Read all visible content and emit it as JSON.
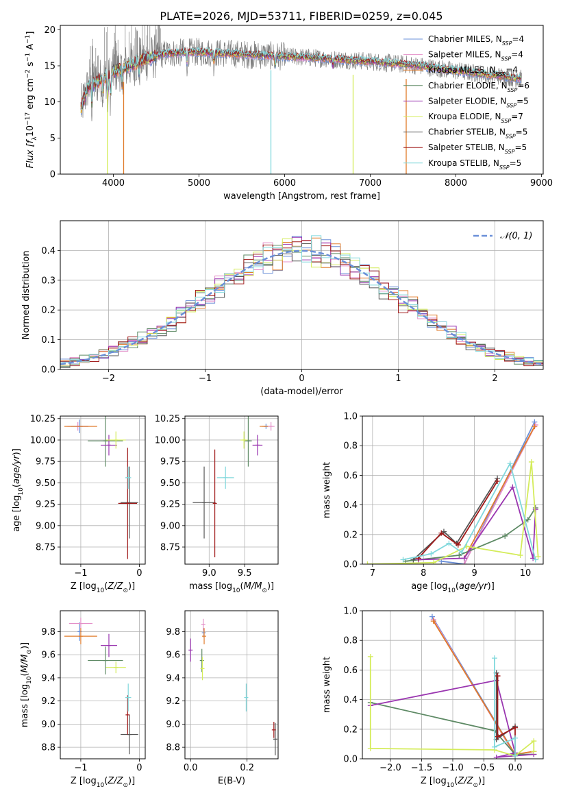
{
  "figure_title": "PLATE=2026, MJD=53711, FIBERID=0259, z=0.045",
  "colors": {
    "chabrier_miles": "#6a8fd8",
    "salpeter_miles": "#e48fc8",
    "kroupa_miles": "#e07b2a",
    "chabrier_elodie": "#5e8a65",
    "salpeter_elodie": "#9a36b0",
    "kroupa_elodie": "#d4ec5a",
    "chabrier_stelib": "#555555",
    "salpeter_stelib": "#a01a1a",
    "kroupa_stelib": "#80d8dc",
    "noise": "#808080"
  },
  "chart_data": [
    {
      "id": "spectrum",
      "type": "line",
      "xlabel": "wavelength [Angstrom, rest frame]",
      "ylabel": "Flux [f_λ10^-17 erg cm^-2 s^-1 A^-1]",
      "xlim": [
        3380,
        9020
      ],
      "ylim": [
        0,
        20.6
      ],
      "xticks": [
        4000,
        5000,
        6000,
        7000,
        8000,
        9000
      ],
      "yticks": [
        0,
        5,
        10,
        15,
        20
      ],
      "grid": false,
      "legend_position": "right",
      "legend": [
        {
          "label": "Chabrier MILES, N",
          "sub": "SSP",
          "tail": "=4"
        },
        {
          "label": "Salpeter MILES, N",
          "sub": "SSP",
          "tail": "=4"
        },
        {
          "label": "Kroupa MILES, N",
          "sub": "SSP",
          "tail": "=4"
        },
        {
          "label": "Chabrier ELODIE, N",
          "sub": "SSP",
          "tail": "=6"
        },
        {
          "label": "Salpeter ELODIE, N",
          "sub": "SSP",
          "tail": "=5"
        },
        {
          "label": "Kroupa ELODIE, N",
          "sub": "SSP",
          "tail": "=7"
        },
        {
          "label": "Chabrier STELIB, N",
          "sub": "SSP",
          "tail": "=5"
        },
        {
          "label": "Salpeter STELIB, N",
          "sub": "SSP",
          "tail": "=5"
        },
        {
          "label": "Kroupa STELIB, N",
          "sub": "SSP",
          "tail": "=5"
        }
      ],
      "continuum": [
        [
          3620,
          9.0
        ],
        [
          3700,
          12.0
        ],
        [
          3850,
          13.0
        ],
        [
          4000,
          14.2
        ],
        [
          4300,
          15.6
        ],
        [
          4600,
          16.7
        ],
        [
          5000,
          16.9
        ],
        [
          5500,
          16.6
        ],
        [
          6000,
          16.3
        ],
        [
          6500,
          16.0
        ],
        [
          7000,
          15.6
        ],
        [
          7500,
          15.1
        ],
        [
          8000,
          14.3
        ],
        [
          8500,
          13.6
        ],
        [
          8760,
          13.2
        ]
      ],
      "drops": [
        {
          "x": 3930,
          "series": "kroupa_elodie"
        },
        {
          "x": 4120,
          "series": "kroupa_miles"
        },
        {
          "x": 5840,
          "series": "kroupa_stelib"
        },
        {
          "x": 6800,
          "series": "kroupa_elodie"
        },
        {
          "x": 7420,
          "series": "kroupa_miles"
        }
      ]
    },
    {
      "id": "residual_hist",
      "type": "histogram",
      "xlabel": "(data-model)/error",
      "ylabel": "Normed distribution",
      "xlim": [
        -2.5,
        2.5
      ],
      "ylim": [
        0,
        0.5
      ],
      "xticks": [
        -2,
        -1,
        0,
        1,
        2
      ],
      "yticks": [
        0,
        0.1,
        0.2,
        0.3,
        0.4
      ],
      "grid": true,
      "legend_position": "top-right",
      "legend": [
        {
          "label": "𝒩(0, 1)"
        }
      ],
      "bin_width": 0.1
    },
    {
      "id": "age_vs_z",
      "type": "scatter",
      "xlabel": "Z [log10(Z/Z⊙)]",
      "ylabel": "age  [log10(age/yr)]",
      "xlim": [
        -1.35,
        0.1
      ],
      "ylim": [
        8.55,
        10.28
      ],
      "xticks": [
        -1,
        0
      ],
      "yticks": [
        8.75,
        9.0,
        9.25,
        9.5,
        9.75,
        10.0,
        10.25
      ],
      "grid": true,
      "points": [
        {
          "series": "chabrier_miles",
          "x": -1.02,
          "y": 10.16,
          "xerr": 0.15,
          "yerr": 0.08
        },
        {
          "series": "salpeter_miles",
          "x": -1.05,
          "y": 10.16,
          "xerr": 0.18,
          "yerr": 0.05
        },
        {
          "series": "kroupa_miles",
          "x": -1.0,
          "y": 10.16,
          "xerr": 0.28,
          "yerr": 0.0
        },
        {
          "series": "chabrier_elodie",
          "x": -0.58,
          "y": 9.99,
          "xerr": 0.3,
          "yerr": 0.3
        },
        {
          "series": "salpeter_elodie",
          "x": -0.52,
          "y": 9.94,
          "xerr": 0.14,
          "yerr": 0.12
        },
        {
          "series": "kroupa_elodie",
          "x": -0.4,
          "y": 10.0,
          "xerr": 0.17,
          "yerr": 0.1
        },
        {
          "series": "chabrier_stelib",
          "x": -0.17,
          "y": 9.27,
          "xerr": 0.15,
          "yerr": 0.42
        },
        {
          "series": "salpeter_stelib",
          "x": -0.2,
          "y": 9.26,
          "xerr": 0.16,
          "yerr": 0.65
        },
        {
          "series": "kroupa_stelib",
          "x": -0.19,
          "y": 9.56,
          "xerr": 0.05,
          "yerr": 0.13
        }
      ]
    },
    {
      "id": "age_vs_mass",
      "type": "scatter",
      "xlabel": "mass [log10(M/M⊙)]",
      "ylabel": "",
      "xlim": [
        8.66,
        9.97
      ],
      "ylim": [
        8.55,
        10.28
      ],
      "xticks": [
        9.0,
        9.5
      ],
      "yticks": [
        8.75,
        9.0,
        9.25,
        9.5,
        9.75,
        10.0,
        10.25
      ],
      "grid": true,
      "points": [
        {
          "series": "chabrier_miles",
          "x": 9.8,
          "y": 10.16,
          "xerr": 0.03,
          "yerr": 0.03
        },
        {
          "series": "salpeter_miles",
          "x": 9.87,
          "y": 10.16,
          "xerr": 0.05,
          "yerr": 0.05
        },
        {
          "series": "kroupa_miles",
          "x": 9.77,
          "y": 10.16,
          "xerr": 0.06,
          "yerr": 0.0
        },
        {
          "series": "chabrier_elodie",
          "x": 9.55,
          "y": 9.99,
          "xerr": 0.05,
          "yerr": 0.3
        },
        {
          "series": "salpeter_elodie",
          "x": 9.68,
          "y": 9.94,
          "xerr": 0.07,
          "yerr": 0.12
        },
        {
          "series": "kroupa_elodie",
          "x": 9.49,
          "y": 10.0,
          "xerr": 0.05,
          "yerr": 0.1
        },
        {
          "series": "chabrier_stelib",
          "x": 8.93,
          "y": 9.27,
          "xerr": 0.16,
          "yerr": 0.42
        },
        {
          "series": "salpeter_stelib",
          "x": 9.08,
          "y": 9.26,
          "xerr": 0.0,
          "yerr": 0.63
        },
        {
          "series": "kroupa_stelib",
          "x": 9.23,
          "y": 9.56,
          "xerr": 0.12,
          "yerr": 0.13
        }
      ]
    },
    {
      "id": "weight_vs_age",
      "type": "line",
      "xlabel": "age  [log10(age/yr)]",
      "ylabel": "mass weight",
      "xlim": [
        6.8,
        10.35
      ],
      "ylim": [
        0,
        1.0
      ],
      "xticks": [
        7,
        8,
        9,
        10
      ],
      "yticks": [
        0,
        0.2,
        0.4,
        0.6,
        0.8,
        1.0
      ],
      "grid": true,
      "series": [
        {
          "key": "chabrier_miles",
          "x": [
            8.35,
            8.8,
            10.18
          ],
          "y": [
            0.02,
            0.0,
            0.96
          ]
        },
        {
          "key": "salpeter_miles",
          "x": [
            8.8,
            10.2
          ],
          "y": [
            0.0,
            0.94
          ]
        },
        {
          "key": "kroupa_miles",
          "x": [
            8.8,
            10.18
          ],
          "y": [
            0.04,
            0.93
          ]
        },
        {
          "key": "chabrier_elodie",
          "x": [
            7.65,
            8.7,
            9.6,
            10.05,
            10.2
          ],
          "y": [
            0.02,
            0.06,
            0.19,
            0.3,
            0.38
          ]
        },
        {
          "key": "salpeter_elodie",
          "x": [
            7.9,
            8.8,
            9.75,
            10.15,
            10.2
          ],
          "y": [
            0.03,
            0.04,
            0.52,
            0.04,
            0.37
          ]
        },
        {
          "key": "kroupa_elodie",
          "x": [
            6.9,
            8.2,
            8.85,
            9.9,
            10.12,
            10.25
          ],
          "y": [
            0.0,
            0.01,
            0.12,
            0.06,
            0.69,
            0.05
          ]
        },
        {
          "key": "chabrier_stelib",
          "x": [
            7.8,
            8.4,
            8.65,
            9.45
          ],
          "y": [
            0.03,
            0.22,
            0.14,
            0.58
          ]
        },
        {
          "key": "salpeter_stelib",
          "x": [
            7.9,
            8.35,
            8.68,
            9.45
          ],
          "y": [
            0.04,
            0.21,
            0.13,
            0.56
          ]
        },
        {
          "key": "kroupa_stelib",
          "x": [
            7.6,
            8.15,
            8.5,
            8.75,
            9.7,
            10.2
          ],
          "y": [
            0.03,
            0.07,
            0.14,
            0.08,
            0.68,
            0.03
          ]
        }
      ]
    },
    {
      "id": "mass_vs_z",
      "type": "scatter",
      "xlabel": "Z [log10(Z/Z⊙)]",
      "ylabel": "mass [log10(M/M⊙)]",
      "xlim": [
        -1.35,
        0.1
      ],
      "ylim": [
        8.7,
        9.98
      ],
      "xticks": [
        -1,
        0
      ],
      "yticks": [
        8.8,
        9.0,
        9.2,
        9.4,
        9.6,
        9.8
      ],
      "grid": true,
      "points": [
        {
          "series": "chabrier_miles",
          "x": -1.02,
          "y": 9.8,
          "xerr": 0.0,
          "yerr": 0.08
        },
        {
          "series": "salpeter_miles",
          "x": -1.0,
          "y": 9.87,
          "xerr": 0.2,
          "yerr": 0.05
        },
        {
          "series": "kroupa_miles",
          "x": -1.0,
          "y": 9.76,
          "xerr": 0.28,
          "yerr": 0.07
        },
        {
          "series": "chabrier_elodie",
          "x": -0.58,
          "y": 9.55,
          "xerr": 0.3,
          "yerr": 0.12
        },
        {
          "series": "salpeter_elodie",
          "x": -0.52,
          "y": 9.68,
          "xerr": 0.14,
          "yerr": 0.1
        },
        {
          "series": "kroupa_elodie",
          "x": -0.4,
          "y": 9.49,
          "xerr": 0.17,
          "yerr": 0.05
        },
        {
          "series": "chabrier_stelib",
          "x": -0.17,
          "y": 8.91,
          "xerr": 0.15,
          "yerr": 0.17
        },
        {
          "series": "salpeter_stelib",
          "x": -0.2,
          "y": 9.08,
          "xerr": 0.0,
          "yerr": 0.17
        },
        {
          "series": "kroupa_stelib",
          "x": -0.19,
          "y": 9.23,
          "xerr": 0.05,
          "yerr": 0.12
        }
      ]
    },
    {
      "id": "mass_vs_ebv",
      "type": "scatter",
      "xlabel": "E(B-V)",
      "ylabel": "",
      "xlim": [
        -0.02,
        0.31
      ],
      "ylim": [
        8.7,
        9.98
      ],
      "xticks": [
        0.0,
        0.2
      ],
      "yticks": [
        8.8,
        9.0,
        9.2,
        9.4,
        9.6,
        9.8
      ],
      "grid": true,
      "points": [
        {
          "series": "chabrier_miles",
          "x": 0.047,
          "y": 9.79,
          "xerr": 0.0,
          "yerr": 0.04
        },
        {
          "series": "salpeter_miles",
          "x": 0.045,
          "y": 9.86,
          "xerr": 0.0,
          "yerr": 0.05
        },
        {
          "series": "kroupa_miles",
          "x": 0.048,
          "y": 9.76,
          "xerr": 0.0,
          "yerr": 0.07
        },
        {
          "series": "chabrier_elodie",
          "x": 0.04,
          "y": 9.55,
          "xerr": 0.0,
          "yerr": 0.1
        },
        {
          "series": "salpeter_elodie",
          "x": 0.0,
          "y": 9.64,
          "xerr": 0.0,
          "yerr": 0.1
        },
        {
          "series": "kroupa_elodie",
          "x": 0.042,
          "y": 9.48,
          "xerr": 0.0,
          "yerr": 0.1
        },
        {
          "series": "chabrier_stelib",
          "x": 0.3,
          "y": 8.87,
          "xerr": 0.0,
          "yerr": 0.14
        },
        {
          "series": "salpeter_stelib",
          "x": 0.295,
          "y": 8.95,
          "xerr": 0.0,
          "yerr": 0.07
        },
        {
          "series": "kroupa_stelib",
          "x": 0.197,
          "y": 9.23,
          "xerr": 0.0,
          "yerr": 0.12
        }
      ]
    },
    {
      "id": "weight_vs_z",
      "type": "line",
      "xlabel": "Z [log10(Z/Z⊙)]",
      "ylabel": "mass weight",
      "xlim": [
        -2.45,
        0.45
      ],
      "ylim": [
        0,
        1.0
      ],
      "xticks": [
        -2.0,
        -1.5,
        -1.0,
        -0.5,
        0.0
      ],
      "yticks": [
        0,
        0.2,
        0.4,
        0.6,
        0.8,
        1.0
      ],
      "grid": true,
      "series": [
        {
          "key": "chabrier_miles",
          "x": [
            -1.33,
            0.0
          ],
          "y": [
            0.96,
            0.03
          ]
        },
        {
          "key": "salpeter_miles",
          "x": [
            -1.31,
            0.0
          ],
          "y": [
            0.94,
            0.02
          ]
        },
        {
          "key": "kroupa_miles",
          "x": [
            -1.31,
            0.0,
            0.3
          ],
          "y": [
            0.93,
            0.03,
            0.05
          ]
        },
        {
          "key": "chabrier_elodie",
          "x": [
            -2.32,
            -0.33,
            0.0,
            0.3
          ],
          "y": [
            0.38,
            0.19,
            0.03,
            0.03
          ]
        },
        {
          "key": "salpeter_elodie",
          "x": [
            -2.32,
            -0.3,
            0.0,
            -0.3,
            0.3
          ],
          "y": [
            0.36,
            0.53,
            0.04,
            0.01,
            0.03
          ]
        },
        {
          "key": "kroupa_elodie",
          "x": [
            -2.32,
            -2.32,
            -0.33,
            0.0,
            0.3,
            0.3
          ],
          "y": [
            0.69,
            0.07,
            0.06,
            0.02,
            0.12,
            0.05
          ]
        },
        {
          "key": "chabrier_stelib",
          "x": [
            -0.3,
            -0.3,
            0.0
          ],
          "y": [
            0.58,
            0.13,
            0.22
          ]
        },
        {
          "key": "salpeter_stelib",
          "x": [
            -0.28,
            -0.28,
            0.0,
            0.0
          ],
          "y": [
            0.56,
            0.15,
            0.21,
            0.02
          ]
        },
        {
          "key": "kroupa_stelib",
          "x": [
            -0.33,
            -0.33,
            0.0,
            0.0
          ],
          "y": [
            0.68,
            0.08,
            0.14,
            0.02
          ]
        }
      ]
    }
  ]
}
